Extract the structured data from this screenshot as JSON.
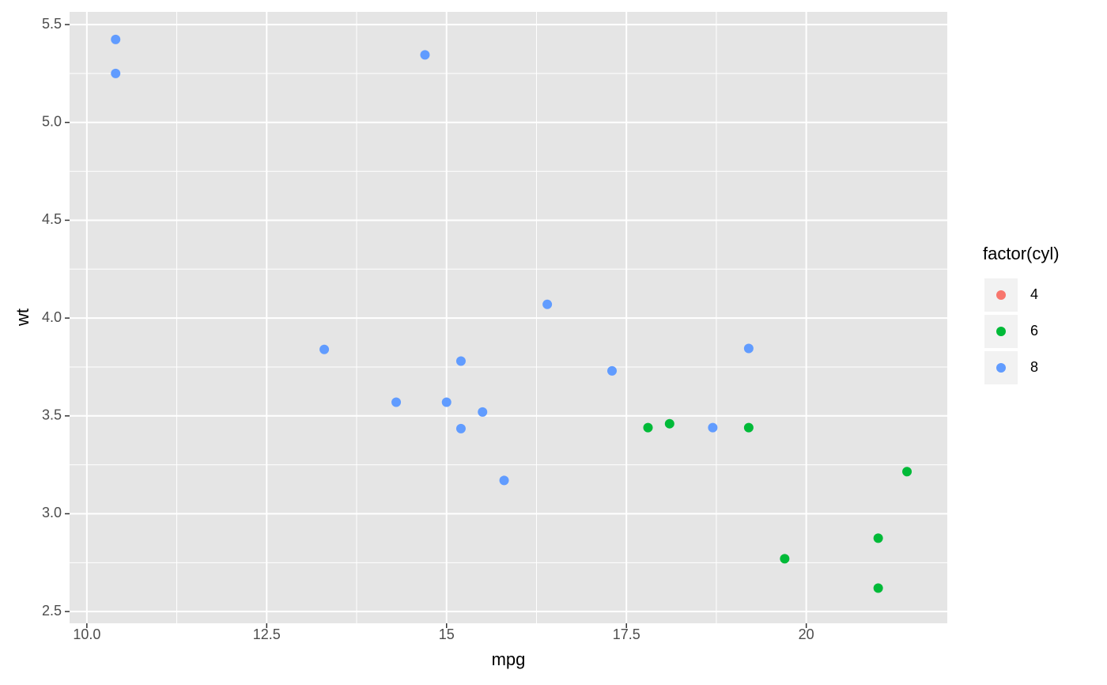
{
  "chart_data": {
    "type": "scatter",
    "x_label": "mpg",
    "y_label": "wt",
    "legend_title": "factor(cyl)",
    "legend_position": "right",
    "xlim": [
      9.76,
      21.96
    ],
    "ylim": [
      2.44,
      5.565
    ],
    "xticks": [
      {
        "value": 10,
        "label": "10.0"
      },
      12.5,
      15,
      17.5,
      20
    ],
    "yticks": [
      {
        "value": 2.5,
        "label": "2.5"
      },
      {
        "value": 3,
        "label": "3.0"
      },
      {
        "value": 3.5,
        "label": "3.5"
      },
      {
        "value": 4,
        "label": "4.0"
      },
      {
        "value": 4.5,
        "label": "4.5"
      },
      {
        "value": 5,
        "label": "5.0"
      },
      {
        "value": 5.5,
        "label": "5.5"
      }
    ],
    "grid": true,
    "series": [
      {
        "name": "4",
        "color": "#f8766d",
        "x": [],
        "values": []
      },
      {
        "name": "6",
        "color": "#00ba38",
        "x": [
          21.0,
          21.0,
          21.4,
          18.1,
          19.2,
          17.8,
          19.7
        ],
        "values": [
          2.62,
          2.875,
          3.215,
          3.46,
          3.44,
          3.44,
          2.77
        ]
      },
      {
        "name": "8",
        "color": "#619cff",
        "x": [
          18.7,
          14.3,
          16.4,
          17.3,
          15.2,
          10.4,
          10.4,
          14.7,
          15.5,
          15.2,
          13.3,
          19.2,
          15.8,
          15.0
        ],
        "values": [
          3.44,
          3.57,
          4.07,
          3.73,
          3.78,
          5.25,
          5.424,
          5.345,
          3.52,
          3.435,
          3.84,
          3.845,
          3.17,
          3.57
        ]
      }
    ]
  }
}
